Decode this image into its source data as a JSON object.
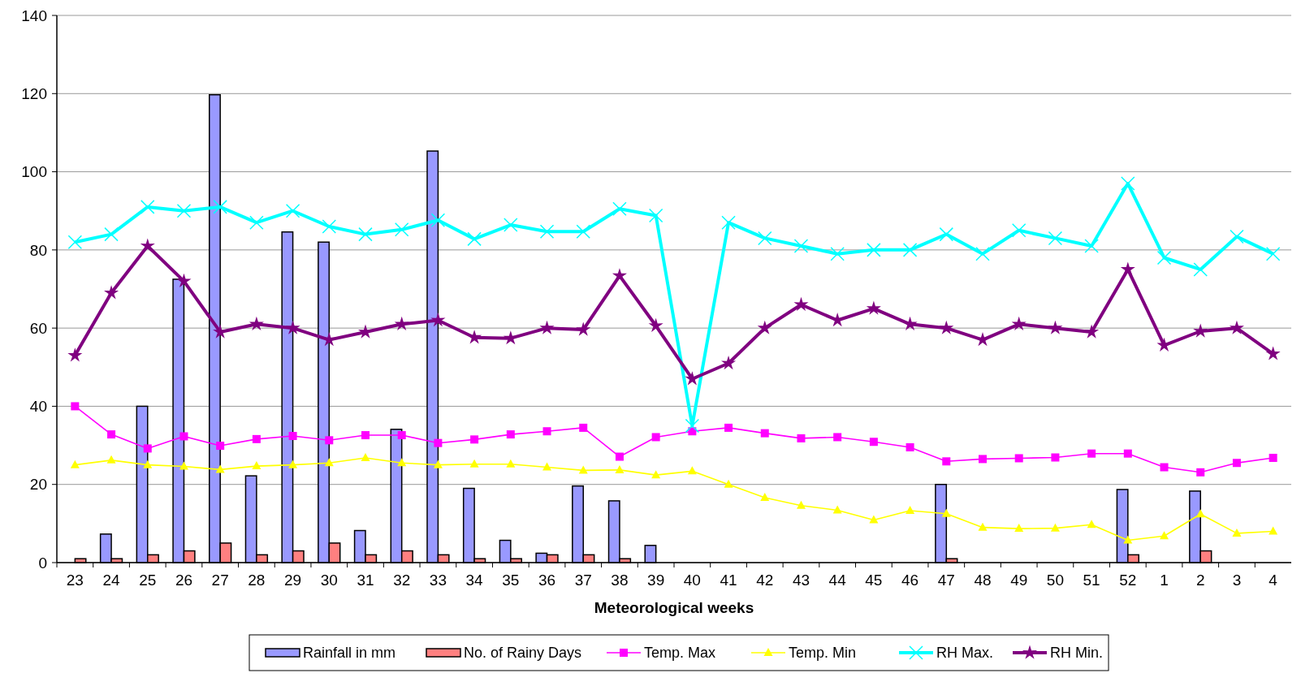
{
  "chart_data": {
    "type": "bar",
    "xlabel": "Meteorological weeks",
    "categories": [
      "23",
      "24",
      "25",
      "26",
      "27",
      "28",
      "29",
      "30",
      "31",
      "32",
      "33",
      "34",
      "35",
      "36",
      "37",
      "38",
      "39",
      "40",
      "41",
      "42",
      "43",
      "44",
      "45",
      "46",
      "47",
      "48",
      "49",
      "50",
      "51",
      "52",
      "1",
      "2",
      "3",
      "4"
    ],
    "series": [
      {
        "name": "Rainfall in mm",
        "color": "#9999ff",
        "values": [
          0,
          7.3,
          40,
          72.5,
          119.7,
          22.2,
          84.6,
          82,
          8.2,
          34.1,
          105.3,
          19,
          5.7,
          2.4,
          19.6,
          15.8,
          4.4,
          0,
          0,
          0,
          0,
          0,
          0,
          0,
          20,
          0,
          0,
          0,
          0,
          18.7,
          0,
          18.3,
          0,
          0
        ]
      },
      {
        "name": "No. of Rainy Days",
        "color": "#ff8080",
        "values": [
          1,
          1,
          2,
          3,
          5,
          2,
          3,
          5,
          2,
          3,
          2,
          1,
          1,
          2,
          2,
          1,
          0,
          0,
          0,
          0,
          0,
          0,
          0,
          0,
          1,
          0,
          0,
          0,
          0,
          2,
          0,
          3,
          0,
          0
        ]
      },
      {
        "name": "Temp. Max",
        "type": "line",
        "marker": "square",
        "color": "#ff00ff",
        "values": [
          40,
          32.8,
          29.2,
          32.3,
          29.9,
          31.6,
          32.4,
          31.3,
          32.6,
          32.6,
          30.6,
          31.5,
          32.8,
          33.6,
          34.5,
          27.1,
          32.1,
          33.6,
          34.5,
          33.1,
          31.8,
          32.1,
          30.9,
          29.5,
          25.9,
          26.5,
          26.7,
          26.9,
          27.9,
          27.9,
          24.4,
          23.1,
          25.5,
          26.8
        ]
      },
      {
        "name": "Temp. Min",
        "type": "line",
        "marker": "triangle",
        "color": "#ffff00",
        "values": [
          25,
          26.2,
          25,
          24.6,
          23.8,
          24.7,
          25,
          25.5,
          26.8,
          25.5,
          25,
          25.2,
          25.2,
          24.4,
          23.6,
          23.7,
          22.4,
          23.4,
          20,
          16.6,
          14.6,
          13.4,
          10.9,
          13.3,
          12.5,
          9,
          8.7,
          8.8,
          9.7,
          5.7,
          6.8,
          12.4,
          7.5,
          8
        ]
      },
      {
        "name": "RH Max.",
        "type": "line",
        "marker": "cross",
        "color": "#00ffff",
        "values": [
          82,
          84,
          91,
          90,
          91,
          87,
          90,
          86,
          84,
          85.2,
          87.6,
          82.8,
          86.4,
          84.7,
          84.7,
          90.5,
          88.8,
          35,
          87,
          83,
          81,
          79,
          80,
          80,
          84,
          79,
          85,
          83,
          81,
          97,
          78,
          75,
          83.4,
          79
        ]
      },
      {
        "name": "RH Min.",
        "type": "line",
        "marker": "star",
        "color": "#800080",
        "values": [
          53,
          69,
          81,
          72,
          59,
          61,
          60,
          57,
          59,
          61,
          62,
          57.6,
          57.4,
          60,
          59.6,
          73.4,
          60.6,
          47,
          51,
          60,
          66,
          62,
          65,
          61,
          60,
          57,
          61,
          60,
          59,
          75,
          55.6,
          59.2,
          60,
          53.4
        ]
      }
    ],
    "ylim": [
      0,
      140
    ],
    "yticks": [
      0,
      20,
      40,
      60,
      80,
      100,
      120,
      140
    ],
    "grid": "y",
    "legend": "bottom"
  }
}
